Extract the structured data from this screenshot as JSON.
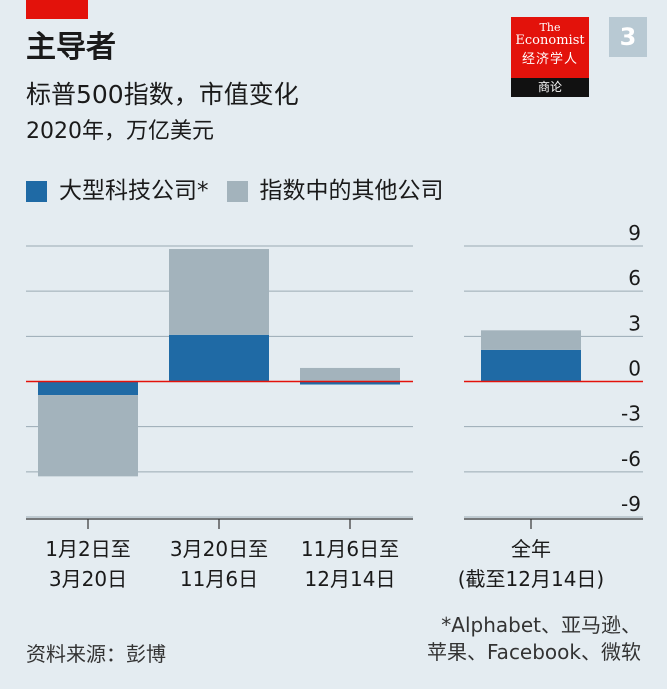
{
  "header": {
    "title": "主导者",
    "subtitle": "标普500指数，市值变化",
    "unit": "2020年，万亿美元"
  },
  "logo": {
    "line1": "The",
    "line2": "Economist",
    "line3": "经济学人",
    "line4": "商论"
  },
  "badge": "3",
  "legend": [
    {
      "label": "大型科技公司*",
      "color": "#1f6aa5"
    },
    {
      "label": "指数中的其他公司",
      "color": "#a3b3bc"
    }
  ],
  "colors": {
    "zero_line": "#e3120b",
    "gridline": "#9aaab4",
    "axis": "#333333"
  },
  "chart_data": {
    "type": "bar",
    "stacked": true,
    "panels": [
      {
        "categories": [
          [
            "1月2日至",
            "3月20日"
          ],
          [
            "3月20日至",
            "11月6日"
          ],
          [
            "11月6日至",
            "12月14日"
          ]
        ],
        "series": [
          {
            "name": "大型科技公司*",
            "values": [
              -0.9,
              3.1,
              -0.2
            ]
          },
          {
            "name": "指数中的其他公司",
            "values": [
              -5.4,
              5.7,
              0.9
            ]
          }
        ]
      },
      {
        "categories": [
          [
            "全年",
            "(截至12月14日)"
          ]
        ],
        "series": [
          {
            "name": "大型科技公司*",
            "values": [
              2.1
            ]
          },
          {
            "name": "指数中的其他公司",
            "values": [
              1.3
            ]
          }
        ]
      }
    ],
    "ylim": [
      -9,
      9
    ],
    "yticks": [
      "9",
      "6",
      "3",
      "0",
      "-3",
      "-6",
      "-9"
    ],
    "ytick_values": [
      9,
      6,
      3,
      0,
      -3,
      -6,
      -9
    ],
    "grid": true
  },
  "footer": {
    "source": "资料来源：彭博",
    "note_line1": "*Alphabet、亚马逊、",
    "note_line2": "苹果、Facebook、微软"
  }
}
